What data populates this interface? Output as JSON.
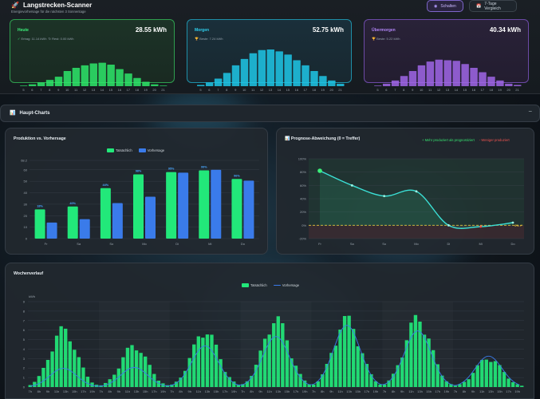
{
  "app": {
    "title": "Langstrecken-Scanner",
    "subtitle": "Energievorhersage für die nächsten 3 Sonnentage"
  },
  "header_buttons": {
    "switch": "Schalten",
    "compare": "7-Tage Vergleich"
  },
  "days": [
    {
      "name": "Heute",
      "value": "28.55 kWh",
      "info1": "Ertrag: 11.14 kWh",
      "info2": "Rest: 0.00 kWh",
      "color": "#2ee86a",
      "hours": [
        "5",
        "6",
        "7",
        "8",
        "9",
        "10",
        "11",
        "12",
        "13",
        "14",
        "15",
        "16",
        "17",
        "18",
        "19",
        "20",
        "21"
      ],
      "values": [
        0.1,
        0.3,
        0.6,
        1.0,
        1.5,
        2.4,
        2.9,
        3.3,
        3.6,
        3.7,
        3.4,
        2.7,
        2.0,
        1.3,
        0.7,
        0.3,
        0.1
      ]
    },
    {
      "name": "Morgen",
      "value": "52.75 kWh",
      "info1": "Beste: 7.24 kWh",
      "info2": "",
      "color": "#1fc7e8",
      "hours": [
        "5",
        "6",
        "7",
        "8",
        "9",
        "10",
        "11",
        "12",
        "13",
        "14",
        "15",
        "16",
        "17",
        "18",
        "19",
        "20",
        "21"
      ],
      "values": [
        0.2,
        0.6,
        1.2,
        2.1,
        3.3,
        4.3,
        5.2,
        5.7,
        5.8,
        5.5,
        5.0,
        4.1,
        3.3,
        2.4,
        1.6,
        0.9,
        0.4
      ]
    },
    {
      "name": "Übermorgen",
      "value": "40.34 kWh",
      "info1": "Beste: 5.22 kWh",
      "info2": "",
      "color": "#a066e8",
      "hours": [
        "5",
        "6",
        "7",
        "8",
        "9",
        "10",
        "11",
        "12",
        "13",
        "14",
        "15",
        "16",
        "17",
        "18",
        "19",
        "20",
        "21"
      ],
      "values": [
        0.1,
        0.4,
        0.9,
        1.6,
        2.4,
        3.3,
        3.9,
        4.2,
        4.1,
        4.0,
        3.5,
        2.9,
        2.2,
        1.5,
        0.9,
        0.4,
        0.2
      ]
    }
  ],
  "section": {
    "title": "Haupt-Charts",
    "collapse": "−"
  },
  "charts": {
    "production": {
      "title": "Produktion vs. Vorhersage",
      "legend_actual": "Tatsächlich",
      "legend_forecast": "Vorhersage"
    },
    "deviation": {
      "title": "Prognose-Abweichung (0 = Treffer)",
      "legend_pos": "+ Mehr produziert als prognostiziert",
      "legend_neg": "- Weniger produziert",
      "zero_label": "0% ✓"
    },
    "weekly": {
      "title": "Wochenverlauf",
      "legend_actual": "Tatsächlich",
      "legend_forecast": "Vorhersage",
      "yunit": "kWh"
    }
  },
  "chart_data": [
    {
      "type": "bar",
      "title": "Produktion vs. Vorhersage",
      "categories": [
        "Fr",
        "Sa",
        "So",
        "Mo",
        "Di",
        "Mi",
        "Do"
      ],
      "series": [
        {
          "name": "Tatsächlich",
          "values": [
            25.5,
            28,
            44,
            56,
            58,
            59.5,
            52
          ],
          "color": "#22e87a"
        },
        {
          "name": "Vorhersage",
          "values": [
            14,
            17,
            31,
            36.5,
            57.5,
            60,
            50.5
          ],
          "color": "#3a7bea"
        }
      ],
      "labels": [
        "18%",
        "40%",
        "44%",
        "98%",
        "95%",
        "99%",
        "96%"
      ],
      "ylim": [
        0,
        68.2
      ],
      "yticks": [
        0,
        10,
        20,
        30,
        40,
        50,
        60,
        68.2
      ]
    },
    {
      "type": "line",
      "title": "Prognose-Abweichung (0 = Treffer)",
      "categories": [
        "Fr",
        "Sa",
        "So",
        "Mo",
        "Di",
        "Mi",
        "Do"
      ],
      "values": [
        82,
        60,
        44,
        51,
        0,
        -2,
        4
      ],
      "ylim": [
        -20,
        100
      ],
      "yticks": [
        -20,
        0,
        20,
        40,
        60,
        80,
        100
      ]
    },
    {
      "type": "bar",
      "title": "Wochenverlauf",
      "ylabel": "kWh",
      "ylim": [
        0,
        9
      ],
      "yticks": [
        0,
        1,
        2,
        3,
        4,
        5,
        6,
        7,
        8,
        9
      ],
      "hour_labels": [
        "7h",
        "9h",
        "11h",
        "13h",
        "15h",
        "17h"
      ],
      "days": 7,
      "actual_peaks": [
        6.5,
        4.7,
        6.4,
        7.7,
        7.7,
        7.8,
        3.3
      ],
      "forecast_peaks": [
        2.0,
        2.1,
        4.4,
        5.4,
        6.6,
        6.0,
        3.3
      ]
    }
  ]
}
